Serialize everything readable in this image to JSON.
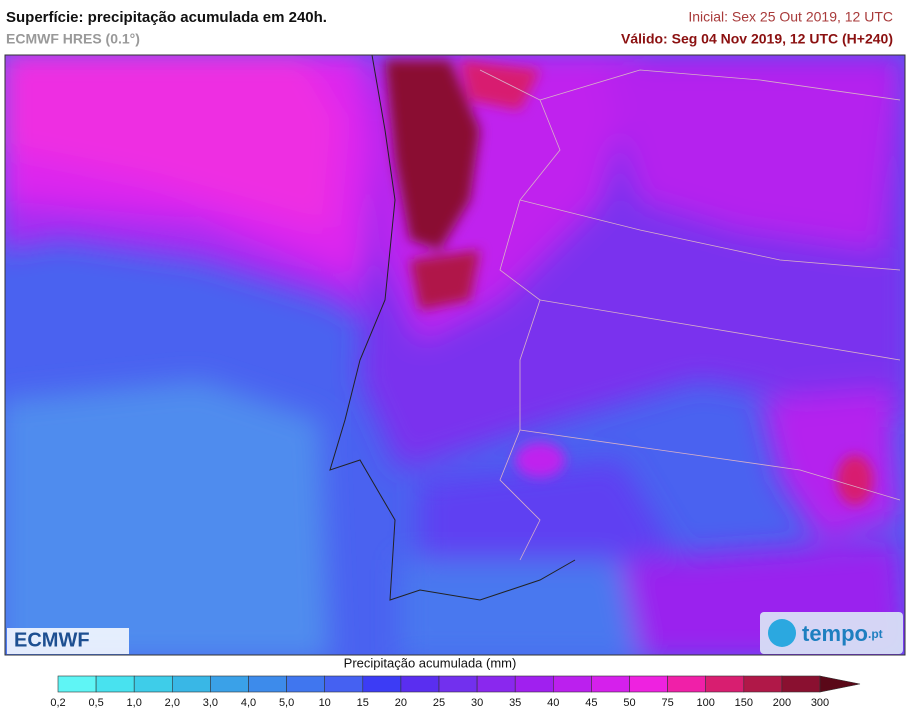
{
  "header": {
    "title": "Superfície: precipitação acumulada em 240h.",
    "model": "ECMWF HRES (0.1°)",
    "initial": "Inicial: Sex 25 Out 2019, 12 UTC",
    "valid": "Válido: Seg 04 Nov 2019, 12 UTC (H+240)"
  },
  "logos": {
    "left": "ECMWF",
    "right": "tempo",
    "right_suffix": ".pt"
  },
  "colorbar": {
    "label": "Precipitação acumulada (mm)",
    "ticks": [
      "0,2",
      "0,5",
      "1,0",
      "2,0",
      "3,0",
      "4,0",
      "5,0",
      "10",
      "15",
      "20",
      "25",
      "30",
      "35",
      "40",
      "45",
      "50",
      "75",
      "100",
      "150",
      "200",
      "300"
    ],
    "colors": [
      "#5ff5f5",
      "#48e2ef",
      "#3ecde9",
      "#39b7e6",
      "#3aa1e8",
      "#3d8beb",
      "#4076ef",
      "#4561f2",
      "#3c3cf5",
      "#5a2ef0",
      "#7230ee",
      "#8a28ee",
      "#a020ef",
      "#bb20ee",
      "#d520ec",
      "#ee22e0",
      "#f020a8",
      "#d81e70",
      "#b01848",
      "#8a1030"
    ],
    "arrow_color": "#5a0818"
  }
}
